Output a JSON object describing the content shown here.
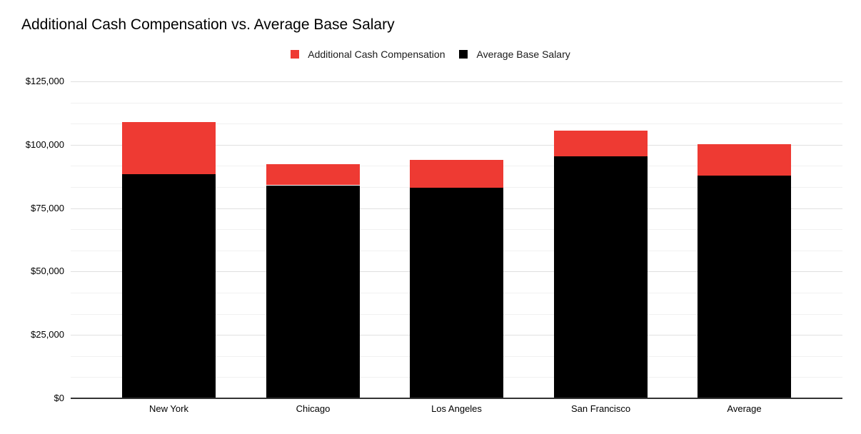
{
  "chart_data": {
    "type": "bar",
    "stacked": true,
    "title": "Additional Cash Compensation vs. Average Base Salary",
    "categories": [
      "New York",
      "Chicago",
      "Los Angeles",
      "San Francisco",
      "Average"
    ],
    "series": [
      {
        "name": "Average Base Salary",
        "color": "#000000",
        "values": [
          88500,
          84000,
          83000,
          95600,
          87800
        ]
      },
      {
        "name": "Additional Cash Compensation",
        "color": "#ee3a33",
        "values": [
          20500,
          8300,
          10900,
          10000,
          12400
        ]
      }
    ],
    "totals": [
      109000,
      92300,
      93900,
      105600,
      100200
    ],
    "xlabel": "",
    "ylabel": "",
    "y_axis": {
      "min": 0,
      "max": 125000,
      "major_step": 25000,
      "minor_divisions_per_major": 3,
      "tick_labels": [
        "$0",
        "$25,000",
        "$50,000",
        "$75,000",
        "$100,000",
        "$125,000"
      ]
    },
    "legend": {
      "position": "top-center",
      "items": [
        {
          "label": "Additional Cash Compensation",
          "color": "#ee3a33"
        },
        {
          "label": "Average Base Salary",
          "color": "#000000"
        }
      ]
    },
    "grid": {
      "major_color": "#e0e0e0",
      "minor_color": "#f1f1f1",
      "baseline_color": "#333333"
    },
    "background": "#ffffff"
  }
}
